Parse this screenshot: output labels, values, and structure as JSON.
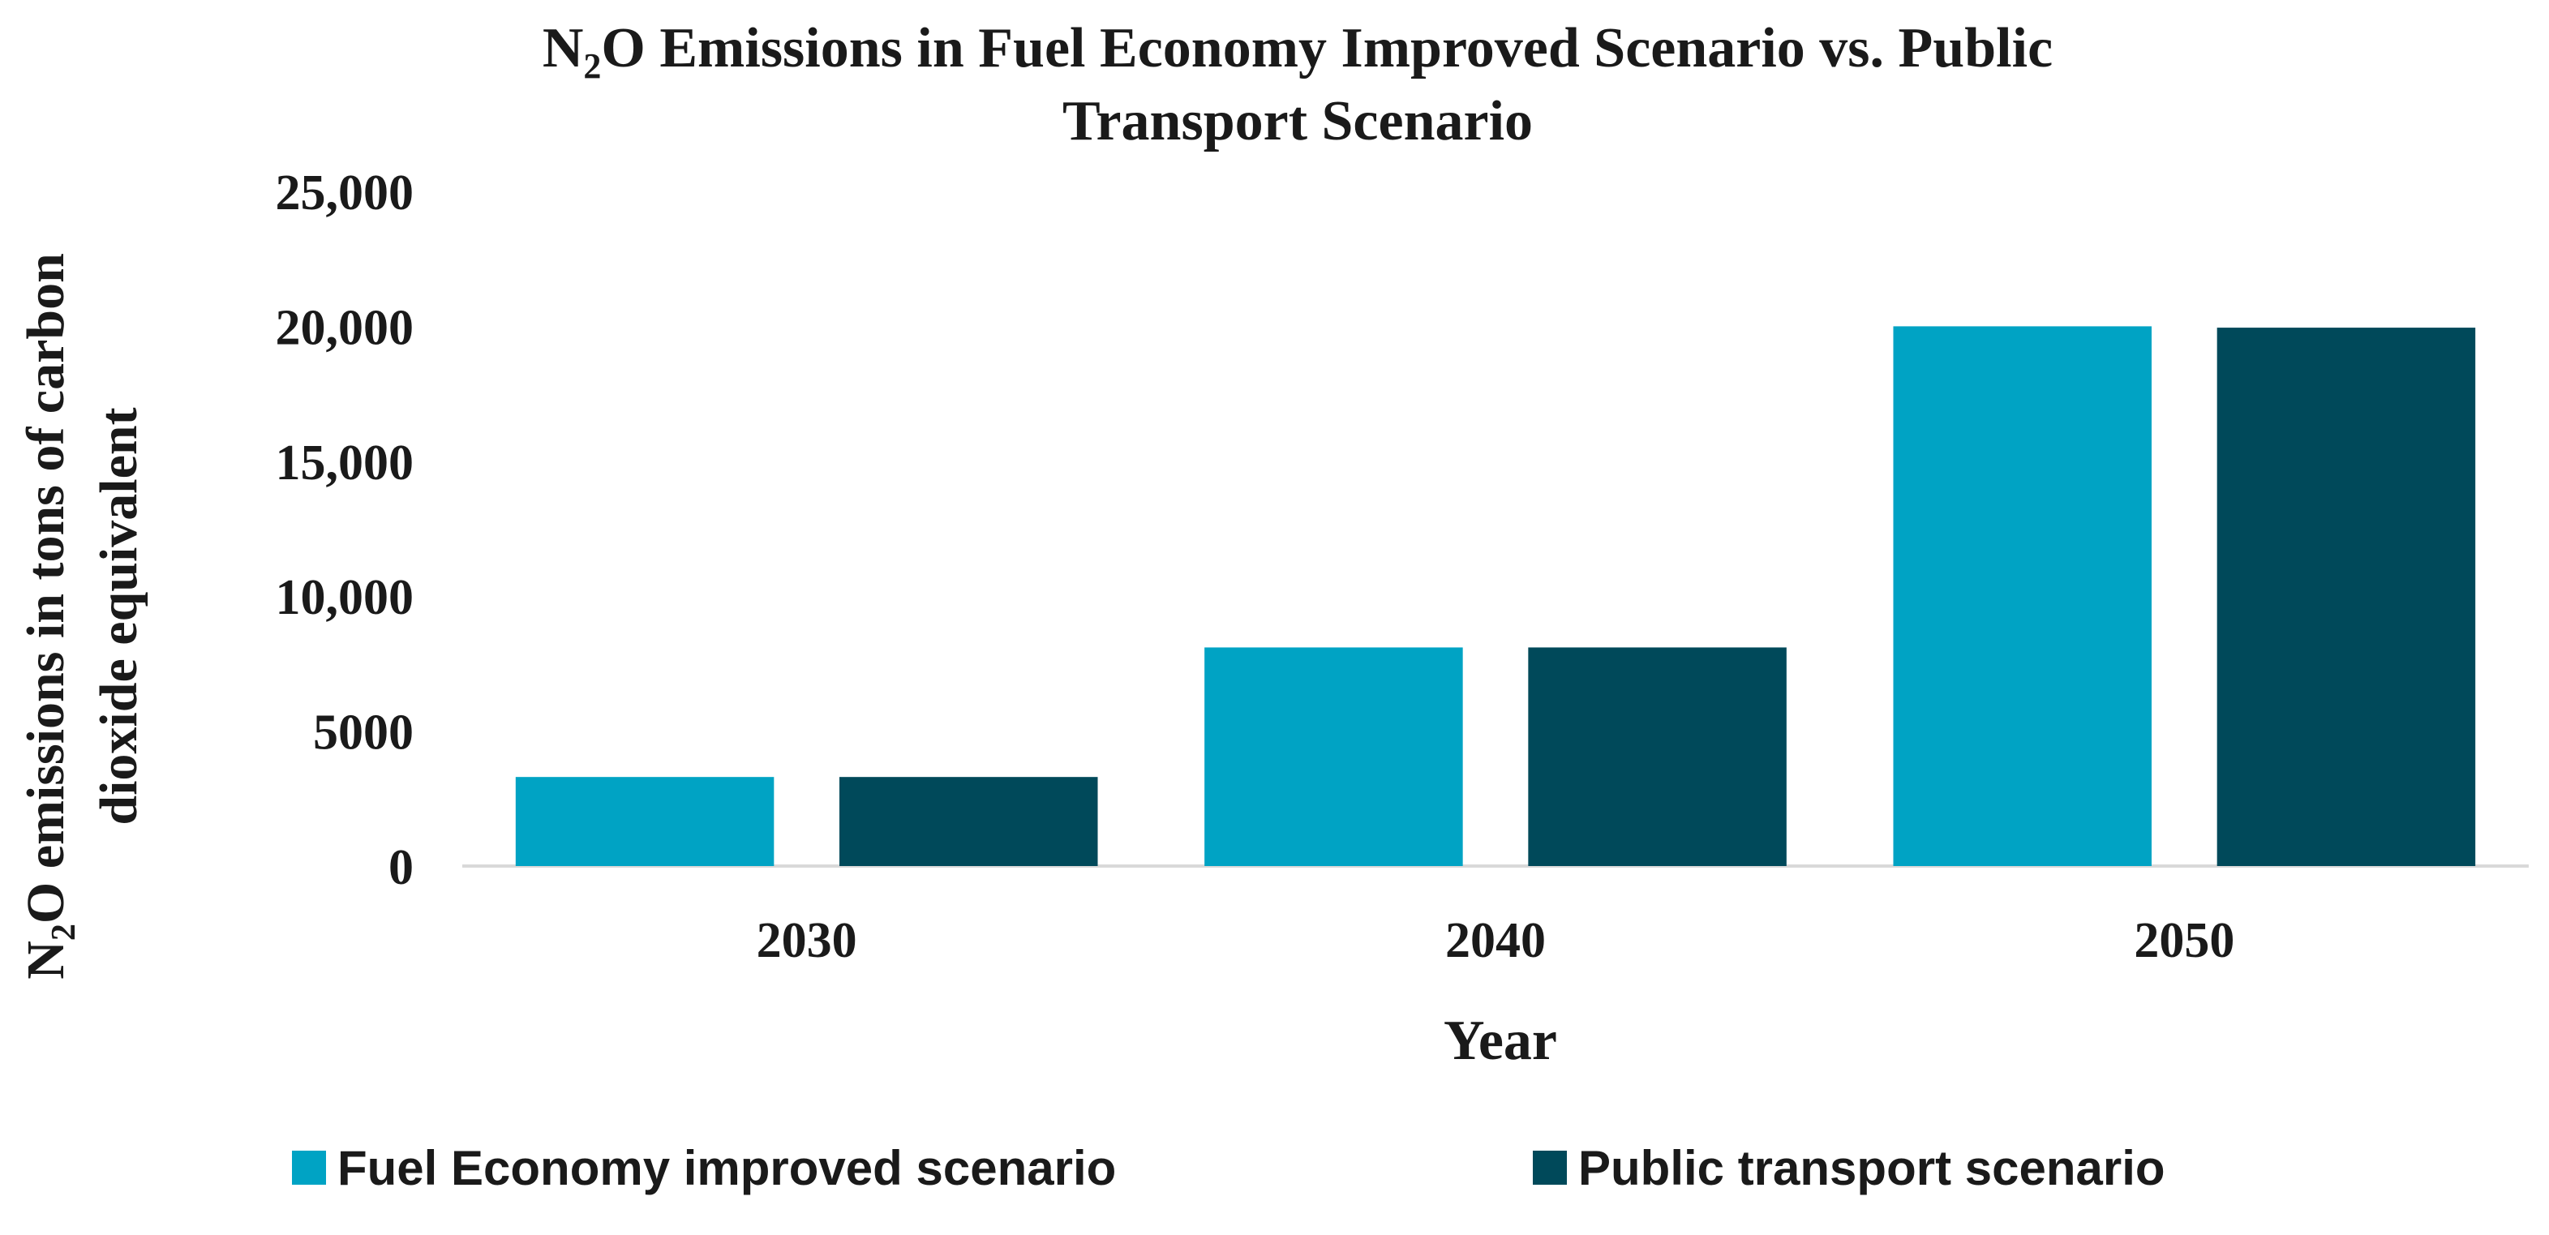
{
  "chart_data": {
    "type": "bar",
    "title_parts": {
      "prefix": "N",
      "subscript": "2",
      "line1_rest": "O Emissions in Fuel Economy Improved Scenario vs. Public",
      "line2": "Transport Scenario"
    },
    "xlabel": "Year",
    "ylabel_parts": {
      "prefix": "N",
      "subscript": "2",
      "line1_rest": "O emissions in tons of carbon",
      "line2": "dioxide equivalent"
    },
    "categories": [
      "2030",
      "2040",
      "2050"
    ],
    "ylim": [
      0,
      25000
    ],
    "yticks": [
      0,
      5000,
      10000,
      15000,
      20000,
      25000
    ],
    "ytick_labels": [
      "0",
      "5000",
      "10,000",
      "15,000",
      "20,000",
      "25,000"
    ],
    "grid": false,
    "legend_position": "bottom",
    "series": [
      {
        "name": "Fuel Economy improved scenario",
        "color": "#00a3c4",
        "values": [
          3300,
          8100,
          20000
        ]
      },
      {
        "name": "Public transport scenario",
        "color": "#00495a",
        "values": [
          3300,
          8100,
          19950
        ]
      }
    ]
  },
  "colors": {
    "axis_line": "#d9d9d9",
    "text": "#1a1a1a"
  }
}
